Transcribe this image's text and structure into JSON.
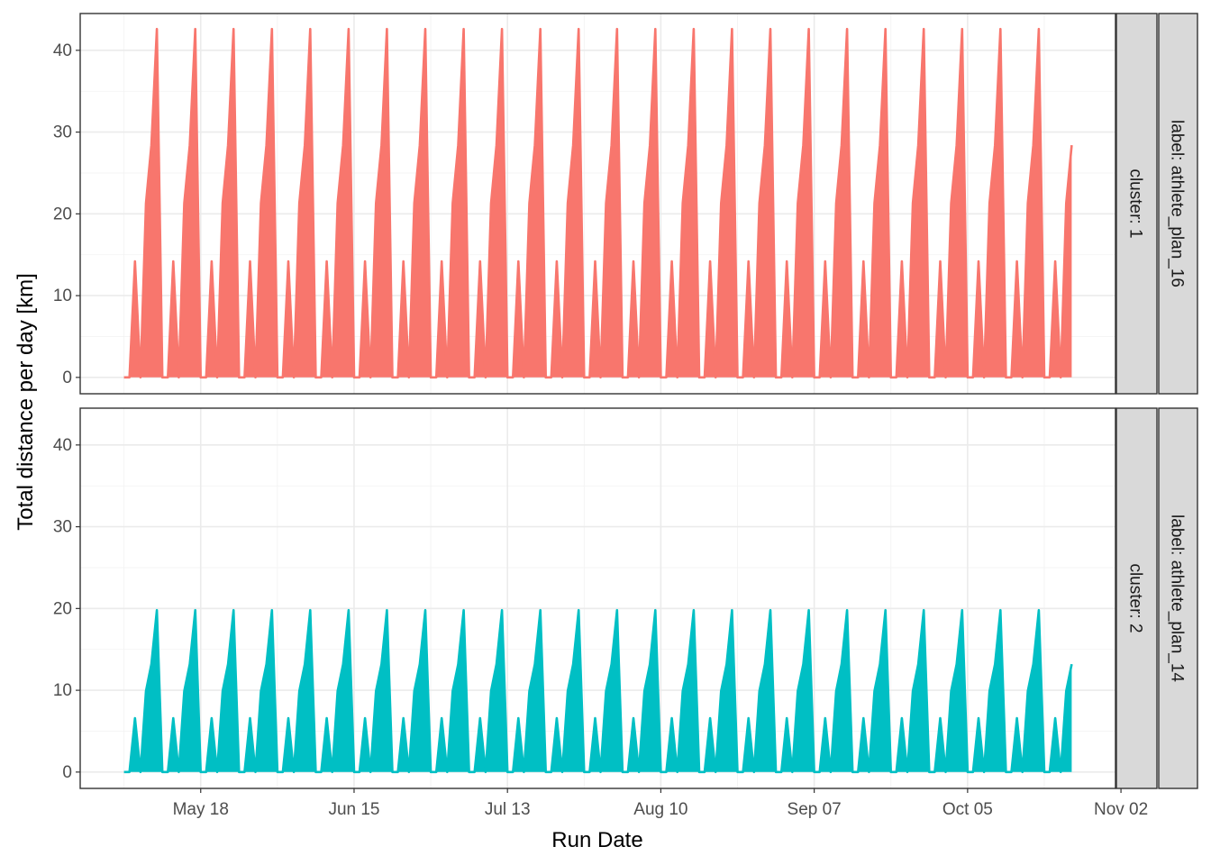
{
  "chart_data": {
    "type": "area",
    "xlabel": "Run Date",
    "ylabel": "Total distance per day [km]",
    "x_ticks": [
      "May 18",
      "Jun 15",
      "Jul 13",
      "Aug 10",
      "Sep 07",
      "Oct 05",
      "Nov 02"
    ],
    "x_range": [
      "2024-04-26",
      "2024-11-01"
    ],
    "x_tick_dates": [
      "2024-05-18",
      "2024-06-15",
      "2024-07-13",
      "2024-08-10",
      "2024-09-07",
      "2024-10-05",
      "2024-11-02"
    ],
    "ylim": [
      -2,
      44.5
    ],
    "y_ticks": [
      0,
      10,
      20,
      30,
      40
    ],
    "grid": true,
    "weekly_pattern": {
      "start_date": "2024-05-04",
      "end_date": "2024-10-24",
      "weeks": 25,
      "description": "repeating weekly cycle; distances per day-of-week"
    },
    "panels": [
      {
        "name": "cluster: 1 / label: athlete_plan_16",
        "strip_right_inner": "cluster: 1",
        "strip_right_outer": "label: athlete_plan_16",
        "color": "#F8766D",
        "week_values_km": [
          0,
          0,
          14.2,
          0,
          21.3,
          28.4,
          42.6
        ],
        "final_week_values_km": [
          0,
          0,
          14.2,
          0,
          21.3,
          28.4
        ]
      },
      {
        "name": "cluster: 2 / label: athlete_plan_14",
        "strip_right_inner": "cluster: 2",
        "strip_right_outer": "label: athlete_plan_14",
        "color": "#00BFC4",
        "week_values_km": [
          0,
          0,
          6.6,
          0,
          9.9,
          13.2,
          19.8
        ],
        "final_week_values_km": [
          0,
          0,
          6.6,
          0,
          9.9,
          13.2
        ]
      }
    ]
  }
}
